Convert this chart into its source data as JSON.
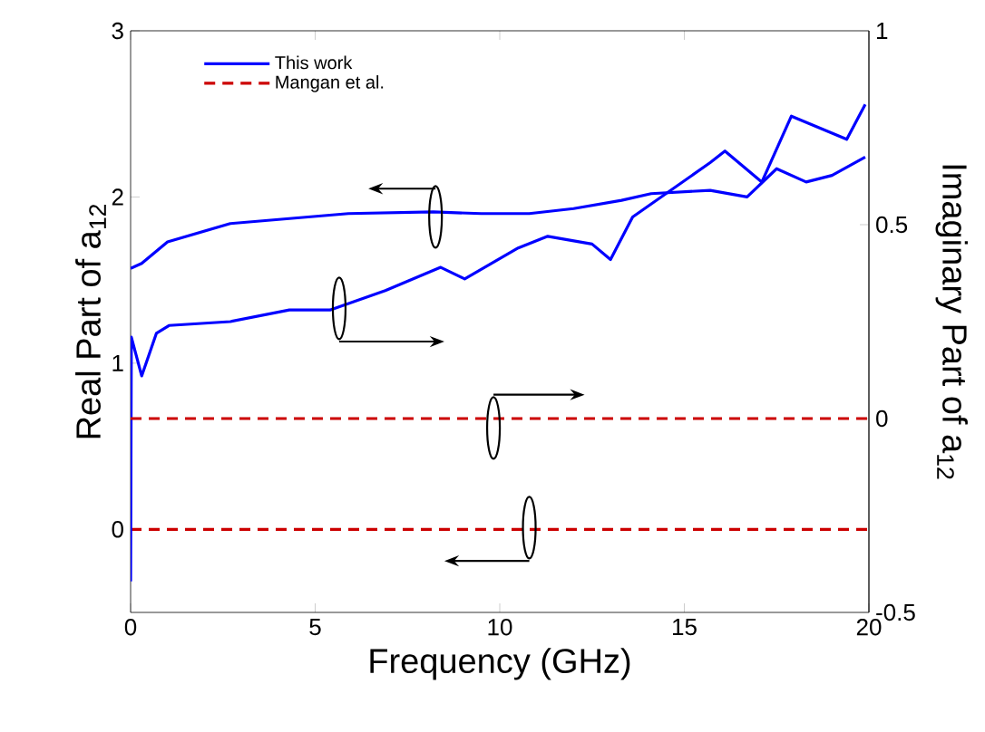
{
  "chart_data": {
    "type": "line",
    "xlabel": "Frequency (GHz)",
    "ylabel": "Real Part of a$_{12}$",
    "y2label": "Imaginary Part of a$_{12}$",
    "xlim": [
      0,
      20
    ],
    "xticks": [
      0,
      5,
      10,
      15,
      20
    ],
    "ylim": [
      -0.5,
      3
    ],
    "yticks": [
      0,
      1,
      2,
      3
    ],
    "y2lim": [
      -0.5,
      1
    ],
    "y2ticks": [
      -0.5,
      0,
      0.5,
      1
    ],
    "legend": "top left",
    "marker": "none",
    "series": [
      {
        "name": "This work",
        "color": "#0000ff",
        "line_style": "solid",
        "x": [
          0,
          0.3,
          1.0,
          2.7,
          4.3,
          5.9,
          8.2,
          9.5,
          10.8,
          12.0,
          13.3,
          14.1,
          15.7,
          16.7,
          17.5,
          18.3,
          19.0,
          19.9
        ],
        "values": [
          1.57,
          1.6,
          1.73,
          1.84,
          1.87,
          1.9,
          1.91,
          1.9,
          1.9,
          1.93,
          1.98,
          2.02,
          2.04,
          2.0,
          2.17,
          2.09,
          2.13,
          2.24
        ]
      },
      {
        "color": "#0000ff",
        "line_style": "solid",
        "axis": "y2",
        "x": [
          0,
          0.02,
          0.3,
          0.7,
          1.04,
          2.7,
          4.3,
          5.4,
          6.9,
          8.4,
          9.05,
          10.5,
          11.3,
          12.5,
          13.0,
          13.6,
          15.7,
          16.1,
          17.1,
          17.9,
          18.9,
          19.4,
          19.9
        ],
        "values": [
          -0.42,
          0.21,
          0.11,
          0.22,
          0.24,
          0.25,
          0.28,
          0.28,
          0.33,
          0.39,
          0.36,
          0.44,
          0.47,
          0.45,
          0.41,
          0.52,
          0.66,
          0.69,
          0.61,
          0.78,
          0.74,
          0.72,
          0.81
        ]
      },
      {
        "name": "Mangan et al.",
        "color": "#cc0000",
        "line_style": "dashed",
        "x": [
          0,
          20
        ],
        "values": [
          0,
          0
        ]
      },
      {
        "color": "#cc0000",
        "line_style": "dashed",
        "axis": "y2",
        "x": [
          0,
          20
        ],
        "values": [
          0,
          0
        ]
      }
    ]
  }
}
